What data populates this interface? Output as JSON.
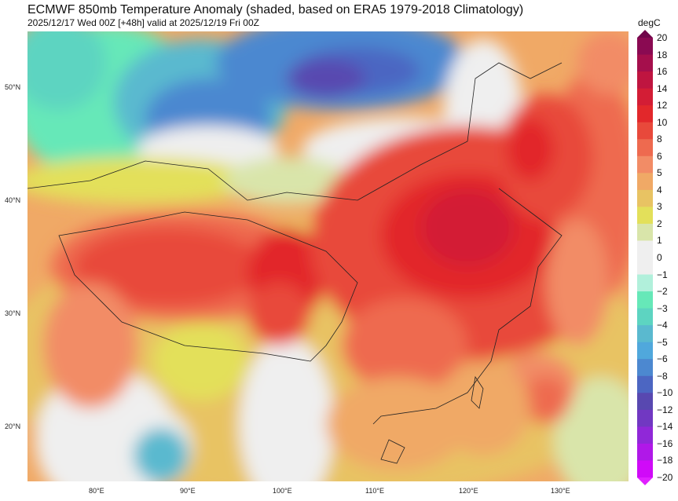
{
  "header": {
    "title": "ECMWF 850mb Temperature Anomaly (shaded, based on ERA5 1979-2018 Climatology)",
    "subtitle": "2025/12/17 Wed 00Z [+48h] valid at 2025/12/19 Fri 00Z"
  },
  "map": {
    "lon_ticks": [
      "80°E",
      "90°E",
      "100°E",
      "110°E",
      "120°E",
      "130°E"
    ],
    "lat_ticks": [
      "50°N",
      "40°N",
      "30°N",
      "20°N"
    ],
    "extent": {
      "lon": [
        72.5,
        137.5
      ],
      "lat": [
        15,
        55
      ]
    }
  },
  "colorbar": {
    "units": "degC",
    "ticks": [
      "20",
      "18",
      "16",
      "14",
      "12",
      "10",
      "8",
      "6",
      "5",
      "4",
      "3",
      "2",
      "1",
      "0",
      "−1",
      "−2",
      "−3",
      "−4",
      "−5",
      "−6",
      "−8",
      "−10",
      "−12",
      "−14",
      "−16",
      "−18",
      "−20"
    ],
    "colors": [
      "#8a0a52",
      "#a50f4c",
      "#bf1540",
      "#d31d35",
      "#e2282b",
      "#e8493b",
      "#ee6a4f",
      "#f28c66",
      "#f0a966",
      "#e8c363",
      "#e3e05a",
      "#d9e5aa",
      "#efefef",
      "#efefef",
      "#b1f0db",
      "#66e8b8",
      "#5dd4c1",
      "#5ab9cf",
      "#50a8dc",
      "#4c88d0",
      "#4c66c2",
      "#5848b0",
      "#7138c2",
      "#9028d8",
      "#b018e8",
      "#d00af8"
    ],
    "top_arrow_color": "#70064a",
    "bottom_arrow_color": "#e020ff"
  }
}
